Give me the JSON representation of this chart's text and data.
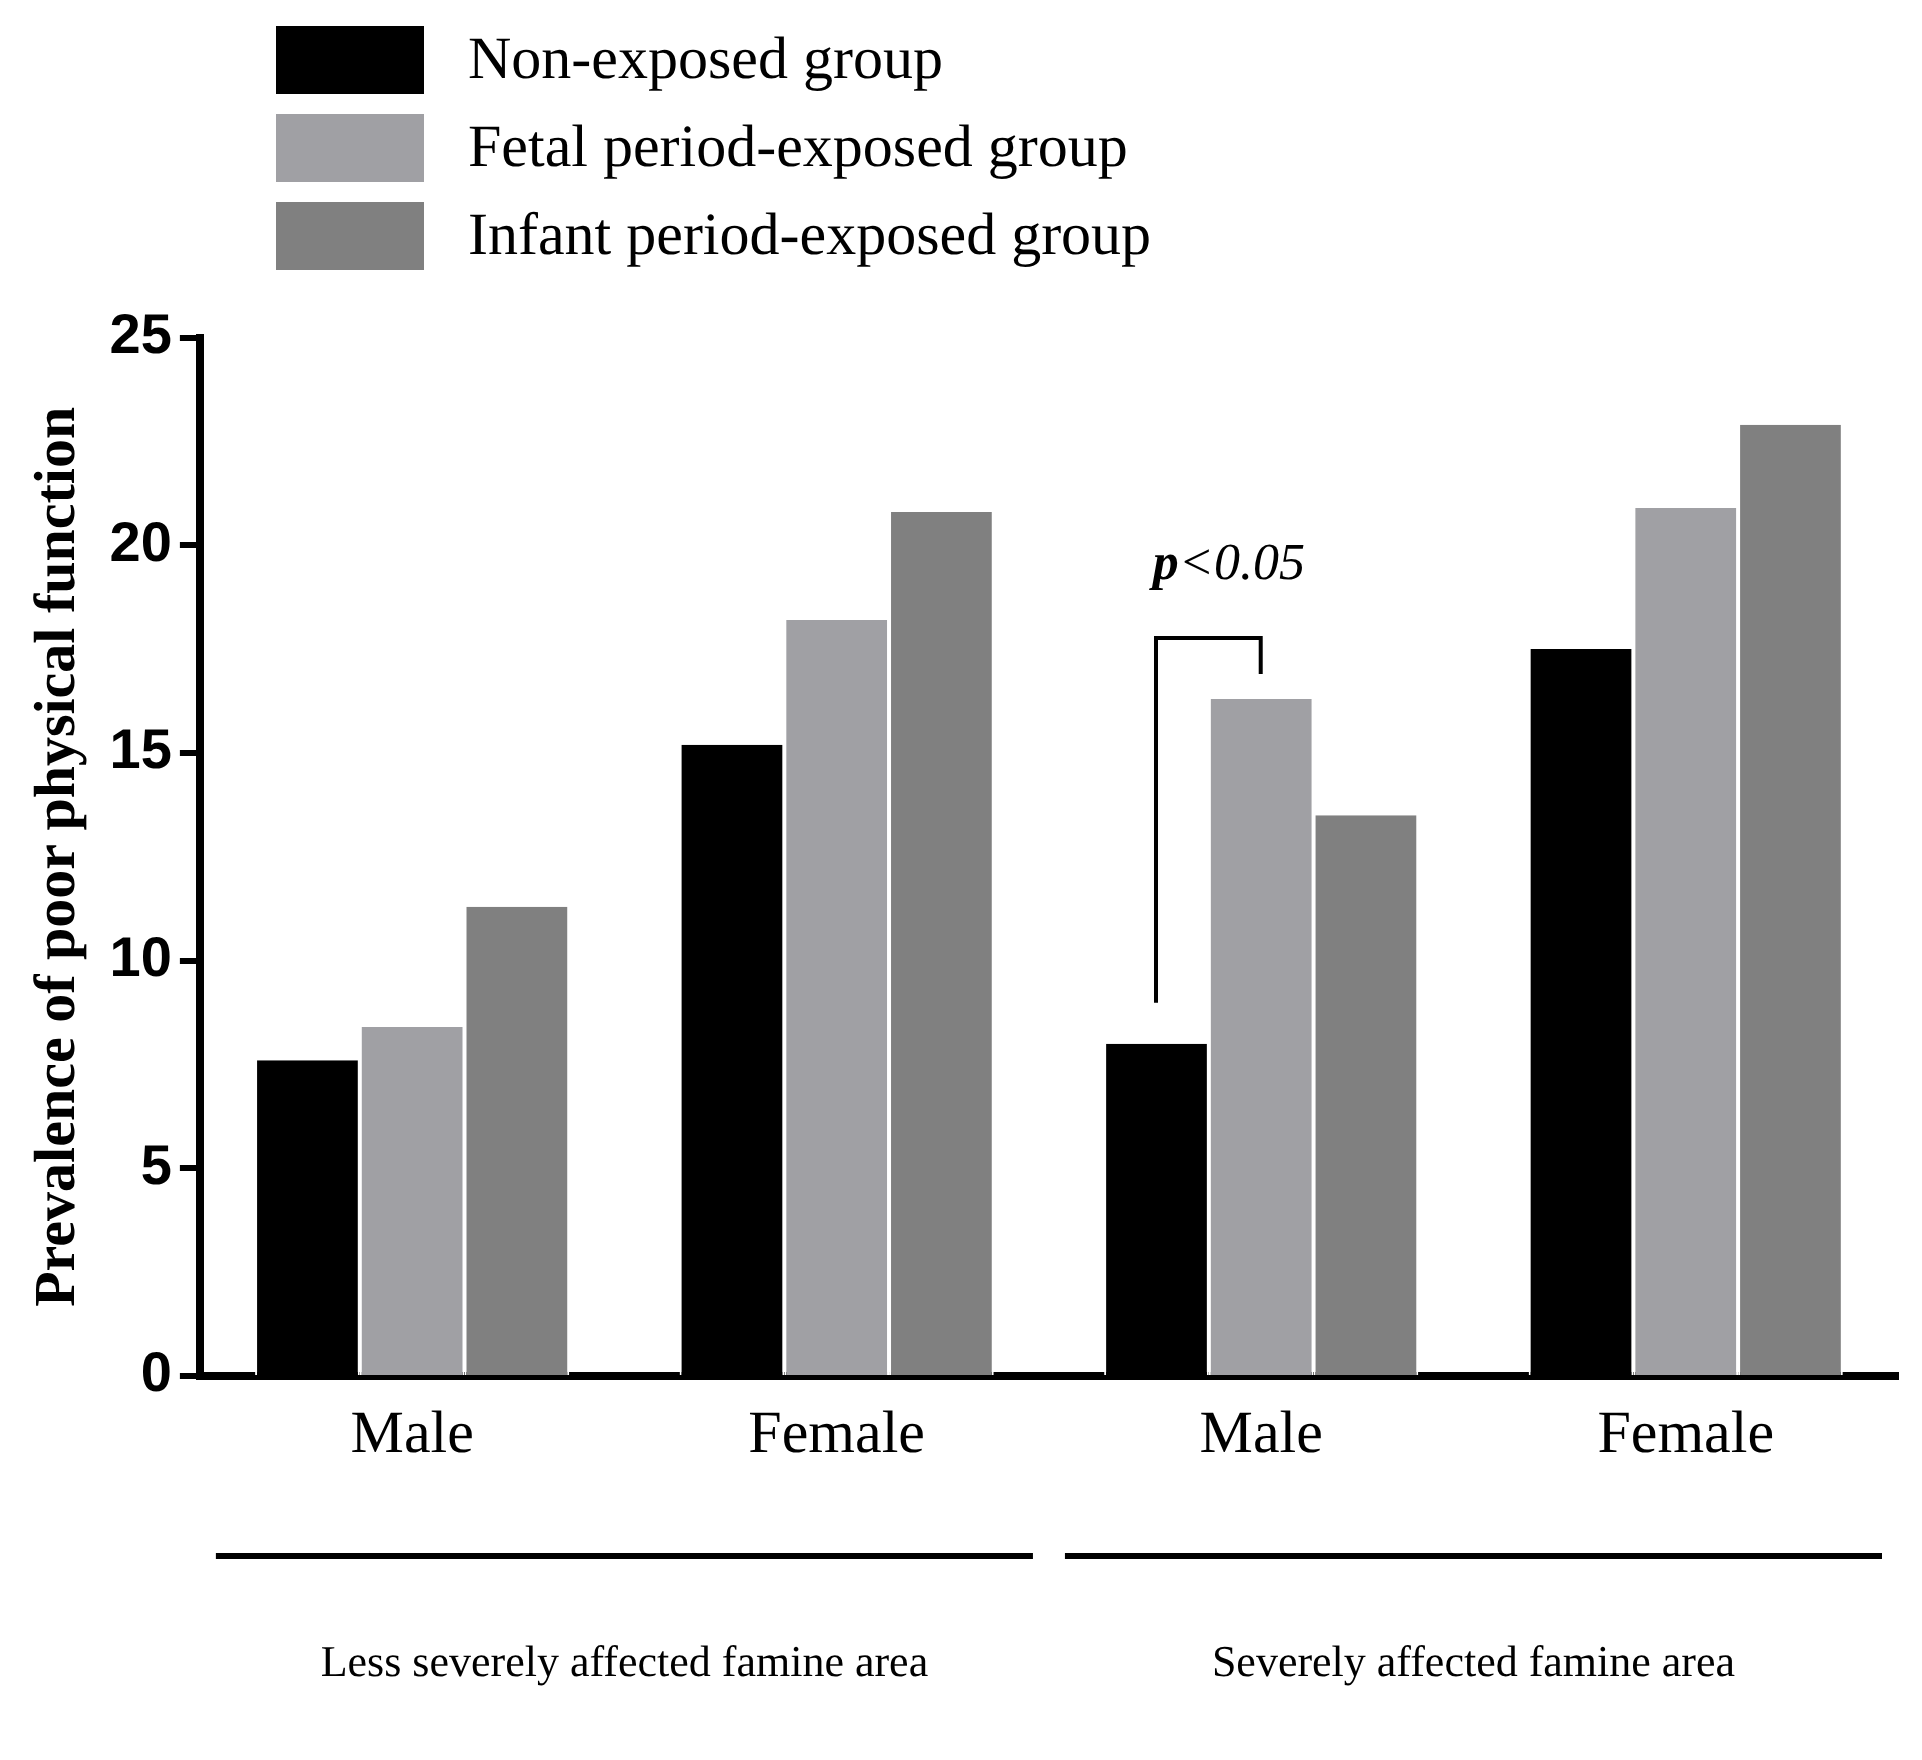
{
  "chart_data": {
    "type": "bar",
    "ylabel": "Prevalence of poor physical function",
    "categories": [
      "Male",
      "Female",
      "Male",
      "Female"
    ],
    "series": [
      {
        "name": "Non-exposed group",
        "color": "#000000",
        "values": [
          7.6,
          15.2,
          8.0,
          17.5
        ]
      },
      {
        "name": "Fetal period-exposed group",
        "color": "#a0a0a4",
        "values": [
          8.4,
          18.2,
          16.3,
          20.9
        ]
      },
      {
        "name": "Infant period-exposed group",
        "color": "#808080",
        "values": [
          11.3,
          20.8,
          13.5,
          22.9
        ]
      }
    ],
    "ylim": [
      0,
      25
    ],
    "yticks": [
      0,
      5,
      10,
      15,
      20,
      25
    ],
    "grid": false,
    "legend": "top left",
    "annotations": [
      "p<0.05",
      "Less severely affected famine area",
      "Severely affected famine area"
    ]
  }
}
